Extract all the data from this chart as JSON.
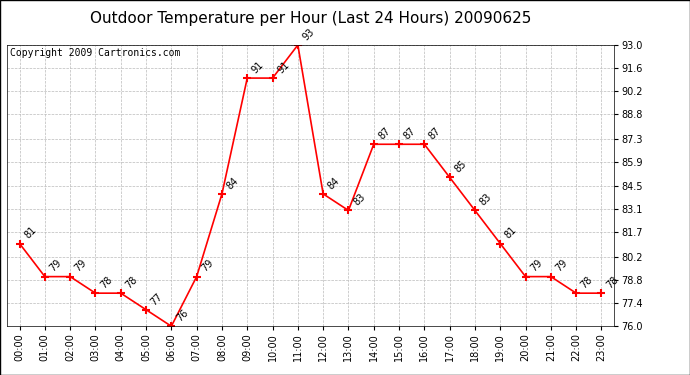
{
  "title": "Outdoor Temperature per Hour (Last 24 Hours) 20090625",
  "copyright": "Copyright 2009 Cartronics.com",
  "hours": [
    "00:00",
    "01:00",
    "02:00",
    "03:00",
    "04:00",
    "05:00",
    "06:00",
    "07:00",
    "08:00",
    "09:00",
    "10:00",
    "11:00",
    "12:00",
    "13:00",
    "14:00",
    "15:00",
    "16:00",
    "17:00",
    "18:00",
    "19:00",
    "20:00",
    "21:00",
    "22:00",
    "23:00"
  ],
  "temps": [
    81,
    79,
    79,
    78,
    78,
    77,
    76,
    79,
    84,
    91,
    91,
    93,
    84,
    83,
    87,
    87,
    87,
    85,
    83,
    81,
    79,
    79,
    78,
    78
  ],
  "ylim_min": 76.0,
  "ylim_max": 93.0,
  "yticks": [
    76.0,
    77.4,
    78.8,
    80.2,
    81.7,
    83.1,
    84.5,
    85.9,
    87.3,
    88.8,
    90.2,
    91.6,
    93.0
  ],
  "line_color": "red",
  "marker": "+",
  "marker_size": 6,
  "marker_linewidth": 1.5,
  "bg_color": "white",
  "grid_color": "#bbbbbb",
  "title_fontsize": 11,
  "copyright_fontsize": 7,
  "label_fontsize": 7,
  "tick_fontsize": 7
}
